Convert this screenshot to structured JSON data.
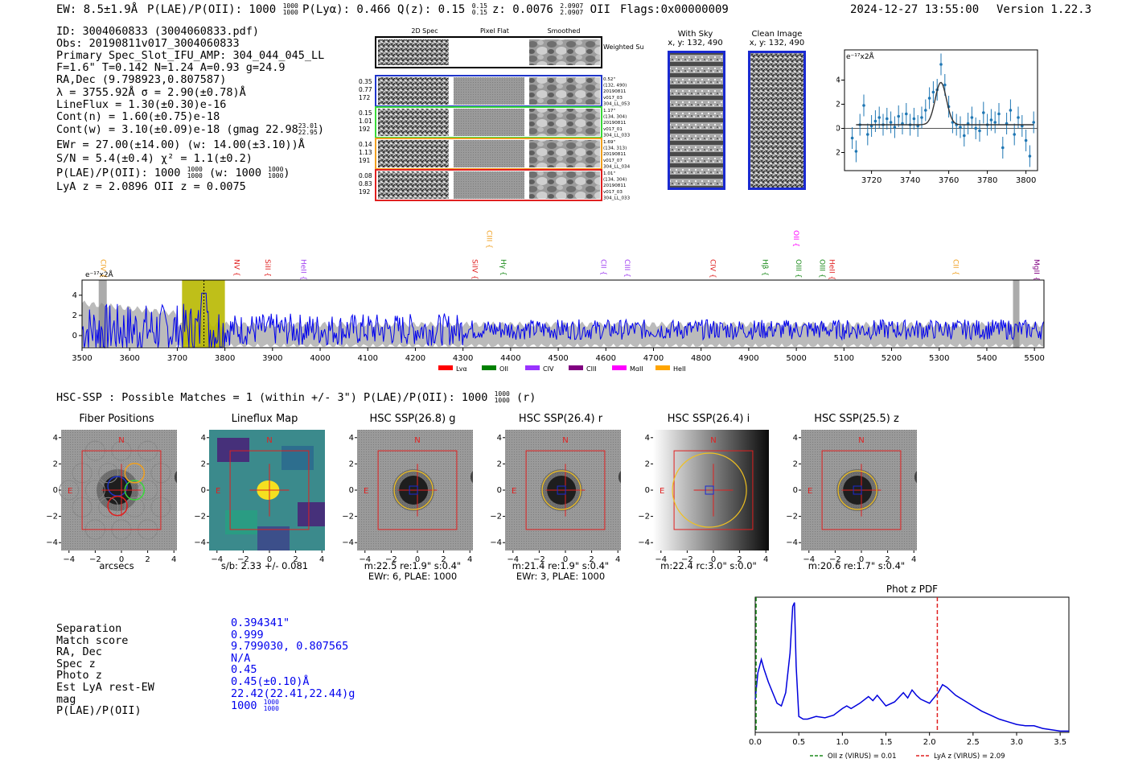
{
  "header": {
    "ew": "EW: 8.5±1.9Å",
    "plae": "P(LAE)/P(OII): 1000",
    "plae_frac": [
      "1000",
      "1000"
    ],
    "plya": "P(Lyα): 0.466",
    "qz": "Q(z): 0.15",
    "qz_frac": [
      "0.15",
      "0.15"
    ],
    "z": "z: 0.0076",
    "z_frac": [
      "2.0907",
      "2.0907"
    ],
    "z_line": "OII",
    "flags": "Flags:0x00000009",
    "datetime": "2024-12-27 13:55:00",
    "version": "Version 1.22.3"
  },
  "info": [
    "ID: 3004060833 (3004060833.pdf)",
    "Obs: 20190811v017_3004060833",
    "Primary Spec_Slot_IFU_AMP: 304_044_045_LL",
    "F=1.6\"  T=0.142  N=1.24  A=0.93  g=24.9",
    "RA,Dec (9.798923,0.807587)",
    "λ = 3755.92Å   σ = 2.90(±0.78)Å",
    "LineFlux = 1.30(±0.30)e-16",
    "Cont(n) = 1.60(±0.75)e-18",
    "Cont(w) = 3.10(±0.09)e-18 (gmag 22.98",
    "EWr = 27.00(±14.00) (w: 14.00(±3.10))Å",
    "S/N = 5.4(±0.4)  χ² = 1.1(±0.2)",
    "P(LAE)/P(OII): 1000",
    "LyA z = 2.0896  OII z = 0.0075"
  ],
  "info_fracs": {
    "gmag": [
      "23.01",
      "22.95"
    ],
    "plae": [
      "1000",
      "1000"
    ],
    "plae_w": "(w: 1000",
    "plae_w_frac": [
      "1000",
      "1000"
    ]
  },
  "cutouts2d": {
    "col_titles": [
      "2D Spec",
      "Pixel Flat",
      "Smoothed"
    ],
    "weighted_label": "Weighted Sum",
    "rows": [
      {
        "left": [
          "0.35",
          "0.77",
          "172"
        ],
        "right": [
          "0.52\"",
          "(132, 490)",
          "20190811",
          "v017_03",
          "304_LL_053"
        ],
        "color": "#1f35c9"
      },
      {
        "left": [
          "0.15",
          "1.01",
          "192"
        ],
        "right": [
          "1.17\"",
          "(134, 304)",
          "20190811",
          "v017_01",
          "304_LL_033"
        ],
        "color": "#3ad83a"
      },
      {
        "left": [
          "0.14",
          "1.13",
          "191"
        ],
        "right": [
          "1.69\"",
          "(134, 313)",
          "20190811",
          "v017_07",
          "304_LL_034"
        ],
        "color": "#f0a020"
      },
      {
        "left": [
          "0.08",
          "0.83",
          "192"
        ],
        "right": [
          "1.01\"",
          "(134, 304)",
          "20190811",
          "v017_03",
          "304_LL_033"
        ],
        "color": "#e02020"
      }
    ]
  },
  "sky": {
    "with_sky": "With Sky",
    "clean": "Clean Image",
    "coords": "x, y: 132, 490"
  },
  "zoom_chart_data": {
    "type": "scatter",
    "ylabel": "e⁻¹⁷x2Å",
    "xlim": [
      3706,
      3806
    ],
    "ylim": [
      -3.5,
      6.5
    ],
    "xticks": [
      3720,
      3740,
      3760,
      3780,
      3800
    ],
    "yticks": [
      -2,
      0,
      2,
      4
    ],
    "x": [
      3710,
      3712,
      3714,
      3716,
      3718,
      3720,
      3722,
      3724,
      3726,
      3728,
      3730,
      3732,
      3734,
      3736,
      3738,
      3740,
      3742,
      3744,
      3746,
      3748,
      3750,
      3752,
      3754,
      3756,
      3758,
      3760,
      3762,
      3764,
      3766,
      3768,
      3770,
      3772,
      3774,
      3776,
      3778,
      3780,
      3782,
      3784,
      3786,
      3788,
      3790,
      3792,
      3794,
      3796,
      3798,
      3800,
      3802,
      3804
    ],
    "y": [
      -0.8,
      -1.9,
      0.3,
      1.9,
      -0.5,
      0.2,
      0.6,
      0.9,
      0.3,
      0.8,
      0.5,
      0.1,
      1.0,
      0.4,
      1.2,
      0.3,
      0.8,
      0.2,
      0.9,
      1.5,
      2.5,
      3.0,
      3.2,
      5.3,
      3.6,
      1.8,
      0.5,
      0.3,
      0.1,
      -0.6,
      0.4,
      0.9,
      0.0,
      -0.2,
      1.3,
      0.3,
      0.7,
      0.5,
      1.2,
      -1.6,
      0.4,
      1.5,
      -0.5,
      0.9,
      0.2,
      -1.0,
      -2.3,
      0.5
    ],
    "fit_peak": 3755.9,
    "fit_sigma": 2.9,
    "fit_amp": 3.5,
    "fit_base": 0.3
  },
  "spectrum_chart_data": {
    "type": "line",
    "ylabel": "e⁻¹⁷x2Å",
    "xlim": [
      3500,
      5520
    ],
    "ylim": [
      -1.2,
      5.5
    ],
    "xticks": [
      3500,
      3600,
      3700,
      3800,
      3900,
      4000,
      4100,
      4200,
      4300,
      4400,
      4500,
      4600,
      4700,
      4800,
      4900,
      5000,
      5100,
      5200,
      5300,
      5400,
      5500
    ],
    "yticks": [
      0,
      2,
      4
    ],
    "highlight": [
      3710,
      3800
    ],
    "line_marker": 3756,
    "lines": [
      {
        "name": "CIV",
        "x": 3540,
        "color": "#f0a020"
      },
      {
        "name": "NV",
        "x": 3820,
        "color": "#e02020"
      },
      {
        "name": "SiII",
        "x": 3885,
        "color": "#e02020"
      },
      {
        "name": "HeII",
        "x": 3960,
        "color": "#a040f0"
      },
      {
        "name": "SiIV",
        "x": 4320,
        "color": "#e02020"
      },
      {
        "name": "CIII",
        "x": 4350,
        "color": "#f0a020"
      },
      {
        "name": "Hγ",
        "x": 4380,
        "color": "#1a8a1a"
      },
      {
        "name": "CII",
        "x": 4590,
        "color": "#a040f0"
      },
      {
        "name": "CIII",
        "x": 4640,
        "color": "#a040f0"
      },
      {
        "name": "CIV",
        "x": 4820,
        "color": "#e02020"
      },
      {
        "name": "Hβ",
        "x": 4930,
        "color": "#1a8a1a"
      },
      {
        "name": "OII",
        "x": 4995,
        "color": "#ff00ff"
      },
      {
        "name": "OIII",
        "x": 5000,
        "color": "#1a8a1a"
      },
      {
        "name": "OIII",
        "x": 5050,
        "color": "#1a8a1a"
      },
      {
        "name": "HeII",
        "x": 5070,
        "color": "#e02020"
      },
      {
        "name": "CII",
        "x": 5330,
        "color": "#f0a020"
      },
      {
        "name": "MgII",
        "x": 5500,
        "color": "#800080"
      }
    ],
    "legend": [
      {
        "name": "Lyα",
        "color": "#ff0000"
      },
      {
        "name": "OII",
        "color": "#008000"
      },
      {
        "name": "CIV",
        "color": "#9933ff"
      },
      {
        "name": "CIII",
        "color": "#800080"
      },
      {
        "name": "MgII",
        "color": "#ff00ff"
      },
      {
        "name": "HeII",
        "color": "#ffa500"
      }
    ]
  },
  "hsc": {
    "title": "HSC-SSP : Possible Matches = 1 (within +/- 3\")  P(LAE)/P(OII): 1000",
    "title_frac": [
      "1000",
      "1000"
    ],
    "title_suffix": "(r)",
    "panels": [
      {
        "title": "Fiber Positions",
        "cap1": "arcsecs",
        "cap2": ""
      },
      {
        "title": "Lineflux Map",
        "cap1": "s/b: 2.33 +/- 0.081",
        "cap2": ""
      },
      {
        "title": "HSC SSP(26.8) g",
        "cap1": "m:22.5  re:1.9\"  s:0.4\"",
        "cap2": "EWr: 6, PLAE: 1000"
      },
      {
        "title": "HSC SSP(26.4) r",
        "cap1": "m:21.4  re:1.9\"  s:0.4\"",
        "cap2": "EWr: 3, PLAE: 1000"
      },
      {
        "title": "HSC SSP(26.4) i",
        "cap1": "m:22.4 rc:3.0\"  s:0.0\"",
        "cap2": ""
      },
      {
        "title": "HSC SSP(25.5) z",
        "cap1": "m:20.6  re:1.7\"  s:0.4\"",
        "cap2": ""
      }
    ],
    "axis_ticks": [
      "−4",
      "−2",
      "0",
      "2",
      "4"
    ],
    "compass_n": "N",
    "compass_e": "E"
  },
  "match": {
    "labels": [
      "Separation",
      "Match score",
      "RA, Dec",
      "Spec z",
      "Photo z",
      "Est LyA rest-EW",
      "mag",
      "P(LAE)/P(OII)"
    ],
    "values": [
      "0.394341\"",
      "0.999",
      "9.799030, 0.807565",
      "N/A",
      "0.45",
      "0.45(±0.10)Å",
      "22.42(22.41,22.44)g",
      "1000"
    ],
    "plae_frac": [
      "1000",
      "1000"
    ]
  },
  "pdf_chart_data": {
    "type": "line",
    "title": "Phot z PDF",
    "xlim": [
      0,
      3.6
    ],
    "xticks": [
      0.0,
      0.5,
      1.0,
      1.5,
      2.0,
      2.5,
      3.0,
      3.5
    ],
    "x": [
      0.0,
      0.03,
      0.07,
      0.1,
      0.15,
      0.2,
      0.25,
      0.3,
      0.35,
      0.4,
      0.43,
      0.45,
      0.47,
      0.5,
      0.55,
      0.6,
      0.7,
      0.8,
      0.9,
      1.0,
      1.05,
      1.1,
      1.2,
      1.3,
      1.35,
      1.4,
      1.5,
      1.6,
      1.7,
      1.75,
      1.8,
      1.85,
      1.9,
      2.0,
      2.1,
      2.15,
      2.2,
      2.3,
      2.4,
      2.5,
      2.6,
      2.7,
      2.8,
      2.9,
      3.0,
      3.1,
      3.2,
      3.3,
      3.4,
      3.5,
      3.6
    ],
    "y": [
      0.25,
      0.45,
      0.55,
      0.48,
      0.38,
      0.3,
      0.22,
      0.2,
      0.3,
      0.6,
      0.95,
      0.98,
      0.5,
      0.12,
      0.1,
      0.1,
      0.12,
      0.11,
      0.13,
      0.18,
      0.2,
      0.18,
      0.22,
      0.27,
      0.24,
      0.28,
      0.2,
      0.23,
      0.3,
      0.26,
      0.32,
      0.28,
      0.25,
      0.22,
      0.3,
      0.36,
      0.34,
      0.28,
      0.24,
      0.2,
      0.16,
      0.13,
      0.1,
      0.08,
      0.06,
      0.05,
      0.05,
      0.03,
      0.02,
      0.01,
      0.01
    ],
    "oii_z": 0.01,
    "lya_z": 2.09,
    "legend_oii": "OII z (VIRUS) = 0.01",
    "legend_lya": "LyA z (VIRUS) = 2.09"
  }
}
